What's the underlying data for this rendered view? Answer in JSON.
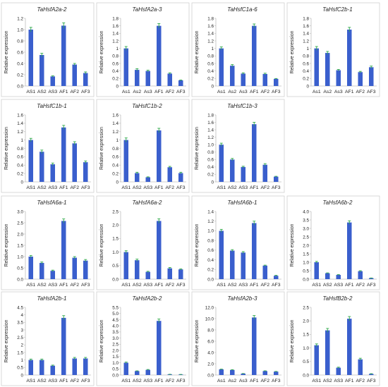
{
  "colors": {
    "bar": "#3a5fcd",
    "error": "#2ea84a",
    "axis": "#bfbfbf",
    "panel_border": "#d0d0d0"
  },
  "chart_data": [
    {
      "type": "bar",
      "title": "TaHsfA2a-2",
      "ylabel": "Relative expression",
      "categories": [
        "AS1",
        "AS2",
        "AS3",
        "AF1",
        "AF2",
        "AF3"
      ],
      "values": [
        1.0,
        0.55,
        0.17,
        1.07,
        0.38,
        0.23
      ],
      "errors": [
        0.04,
        0.03,
        0.01,
        0.05,
        0.02,
        0.02
      ],
      "ylim": [
        0,
        1.2
      ],
      "yticks": [
        "0.0",
        "0.2",
        "0.4",
        "0.6",
        "0.8",
        "1.0",
        "1.2"
      ]
    },
    {
      "type": "bar",
      "title": "TaHsfA2a-3",
      "ylabel": "Relative expression",
      "categories": [
        "As1",
        "As2",
        "As3",
        "AF1",
        "AF2",
        "AF3"
      ],
      "values": [
        1.0,
        0.43,
        0.4,
        1.6,
        0.33,
        0.15
      ],
      "errors": [
        0.05,
        0.03,
        0.02,
        0.06,
        0.02,
        0.01
      ],
      "ylim": [
        0,
        1.8
      ],
      "yticks": [
        "0",
        "0.2",
        "0.4",
        "0.6",
        "0.8",
        "1",
        "1.2",
        "1.4",
        "1.6",
        "1.8"
      ]
    },
    {
      "type": "bar",
      "title": "TaHsfC1a-6",
      "ylabel": "Relative expression",
      "categories": [
        "As1",
        "As2",
        "As3",
        "AF1",
        "AF2",
        "AF3"
      ],
      "values": [
        1.0,
        0.54,
        0.33,
        1.6,
        0.32,
        0.19
      ],
      "errors": [
        0.04,
        0.03,
        0.02,
        0.05,
        0.02,
        0.01
      ],
      "ylim": [
        0,
        1.8
      ],
      "yticks": [
        "0",
        "0.2",
        "0.4",
        "0.6",
        "0.8",
        "1",
        "1.2",
        "1.4",
        "1.6",
        "1.8"
      ]
    },
    {
      "type": "bar",
      "title": "TaHsfC2b-1",
      "ylabel": "Relative expression",
      "categories": [
        "As1",
        "As2",
        "As3",
        "AF1",
        "AF2",
        "AF3"
      ],
      "values": [
        1.0,
        0.88,
        0.42,
        1.5,
        0.37,
        0.5
      ],
      "errors": [
        0.05,
        0.04,
        0.02,
        0.06,
        0.02,
        0.03
      ],
      "ylim": [
        0,
        1.8
      ],
      "yticks": [
        "0",
        "0.2",
        "0.4",
        "0.6",
        "0.8",
        "1",
        "1.2",
        "1.4",
        "1.6",
        "1.8"
      ]
    },
    {
      "type": "bar",
      "title": "TaHsfC1b-1",
      "ylabel": "Relative expression",
      "categories": [
        "AS1",
        "AS2",
        "AS3",
        "AF1",
        "AF2",
        "AF3"
      ],
      "values": [
        1.0,
        0.72,
        0.42,
        1.3,
        0.92,
        0.47
      ],
      "errors": [
        0.04,
        0.04,
        0.03,
        0.05,
        0.04,
        0.03
      ],
      "ylim": [
        0,
        1.6
      ],
      "yticks": [
        "0",
        "0.2",
        "0.4",
        "0.6",
        "0.8",
        "1",
        "1.2",
        "1.4",
        "1.6"
      ]
    },
    {
      "type": "bar",
      "title": "TaHsfC1b-2",
      "ylabel": "Relative expression",
      "categories": [
        "AS1",
        "AS2",
        "AS3",
        "AF1",
        "AF2",
        "AF3"
      ],
      "values": [
        1.0,
        0.21,
        0.11,
        1.23,
        0.35,
        0.21
      ],
      "errors": [
        0.05,
        0.02,
        0.01,
        0.05,
        0.02,
        0.02
      ],
      "ylim": [
        0,
        1.6
      ],
      "yticks": [
        "0",
        "0.2",
        "0.4",
        "0.6",
        "0.8",
        "1",
        "1.2",
        "1.4",
        "1.6"
      ]
    },
    {
      "type": "bar",
      "title": "TaHsfC1b-3",
      "ylabel": "Relative expression",
      "categories": [
        "AS1",
        "AS2",
        "AS3",
        "AF1",
        "AF2",
        "AF3"
      ],
      "values": [
        1.0,
        0.6,
        0.4,
        1.55,
        0.46,
        0.14
      ],
      "errors": [
        0.04,
        0.03,
        0.02,
        0.05,
        0.03,
        0.01
      ],
      "ylim": [
        0,
        1.8
      ],
      "yticks": [
        "0",
        "0.2",
        "0.4",
        "0.6",
        "0.8",
        "1.0",
        "1.2",
        "1.4",
        "1.6",
        "1.8"
      ]
    },
    {
      "type": "bar",
      "title": "TaHsfA6a-1",
      "ylabel": "Relative expression",
      "categories": [
        "AS1",
        "AS2",
        "AS3",
        "AF1",
        "AF2",
        "AF3"
      ],
      "values": [
        1.0,
        0.72,
        0.37,
        2.58,
        0.95,
        0.82
      ],
      "errors": [
        0.05,
        0.04,
        0.03,
        0.09,
        0.05,
        0.05
      ],
      "ylim": [
        0,
        3.0
      ],
      "yticks": [
        "0.0",
        "0.5",
        "1.0",
        "1.5",
        "2.0",
        "2.5",
        "3.0"
      ]
    },
    {
      "type": "bar",
      "title": "TaHsfA6a-2",
      "ylabel": "Relative expression",
      "categories": [
        "AS1",
        "AS2",
        "AS3",
        "AF1",
        "AF2",
        "AF3"
      ],
      "values": [
        1.0,
        0.7,
        0.27,
        2.15,
        0.4,
        0.36
      ],
      "errors": [
        0.05,
        0.04,
        0.02,
        0.08,
        0.03,
        0.02
      ],
      "ylim": [
        0,
        2.5
      ],
      "yticks": [
        "0.0",
        "0.5",
        "1.0",
        "1.5",
        "2.0",
        "2.5"
      ]
    },
    {
      "type": "bar",
      "title": "TaHsfA6b-1",
      "ylabel": "Relative expression",
      "categories": [
        "AS1",
        "AS2",
        "AS3",
        "AF1",
        "AF2",
        "AF3"
      ],
      "values": [
        1.0,
        0.59,
        0.55,
        1.16,
        0.28,
        0.07
      ],
      "errors": [
        0.03,
        0.02,
        0.02,
        0.04,
        0.01,
        0.01
      ],
      "ylim": [
        0,
        1.4
      ],
      "yticks": [
        "0.0",
        "0.2",
        "0.4",
        "0.6",
        "0.8",
        "1.0",
        "1.2",
        "1.4"
      ]
    },
    {
      "type": "bar",
      "title": "TaHsfA6b-2",
      "ylabel": "Relative expression",
      "categories": [
        "AS1",
        "AS2",
        "AS3",
        "AF1",
        "AF2",
        "AF3"
      ],
      "values": [
        1.0,
        0.35,
        0.25,
        3.35,
        0.47,
        0.06
      ],
      "errors": [
        0.05,
        0.02,
        0.02,
        0.1,
        0.03,
        0.01
      ],
      "ylim": [
        0,
        4.0
      ],
      "yticks": [
        "0.0",
        "0.5",
        "1.0",
        "1.5",
        "2.0",
        "2.5",
        "3.0",
        "3.5",
        "4.0"
      ]
    },
    {
      "type": "bar",
      "title": "TaHsfA2b-1",
      "ylabel": "Relative expression",
      "categories": [
        "AS1",
        "AS2",
        "AS3",
        "AF1",
        "AF2",
        "AF3"
      ],
      "values": [
        1.0,
        1.0,
        0.62,
        3.8,
        1.1,
        1.1
      ],
      "errors": [
        0.06,
        0.06,
        0.04,
        0.15,
        0.07,
        0.07
      ],
      "ylim": [
        0,
        4.5
      ],
      "yticks": [
        "0",
        "0.5",
        "1",
        "1.5",
        "2",
        "2.5",
        "3",
        "3.5",
        "4",
        "4.5"
      ]
    },
    {
      "type": "bar",
      "title": "TaHsfA2b-2",
      "ylabel": "Relative expression",
      "categories": [
        "AS1",
        "AS2",
        "AS3",
        "AF1",
        "AF2",
        "AF3"
      ],
      "values": [
        1.0,
        0.32,
        0.42,
        4.4,
        0.05,
        0.04
      ],
      "errors": [
        0.05,
        0.02,
        0.03,
        0.15,
        0.01,
        0.01
      ],
      "ylim": [
        0,
        5.5
      ],
      "yticks": [
        "0.0",
        "0.5",
        "1.0",
        "1.5",
        "2.0",
        "2.5",
        "3.0",
        "3.5",
        "4.0",
        "4.5",
        "5.0",
        "5.5"
      ]
    },
    {
      "type": "bar",
      "title": "TaHsfA2b-3",
      "ylabel": "Relative expression",
      "categories": [
        "As1",
        "As2",
        "As3",
        "AF1",
        "AF2",
        "AF3"
      ],
      "values": [
        1.0,
        0.9,
        0.25,
        10.2,
        0.7,
        0.6
      ],
      "errors": [
        0.05,
        0.05,
        0.02,
        0.35,
        0.05,
        0.04
      ],
      "ylim": [
        0,
        12.0
      ],
      "yticks": [
        "0.0",
        "2.0",
        "4.0",
        "6.0",
        "8.0",
        "10.0",
        "12.0"
      ]
    },
    {
      "type": "bar",
      "title": "TaHsfB2b-2",
      "ylabel": "Relative expression",
      "categories": [
        "AS1",
        "AS2",
        "AS3",
        "AF1",
        "AF2",
        "AF3"
      ],
      "values": [
        1.1,
        1.65,
        0.27,
        2.08,
        0.58,
        0.04
      ],
      "errors": [
        0.05,
        0.07,
        0.02,
        0.08,
        0.04,
        0.01
      ],
      "ylim": [
        0,
        2.5
      ],
      "yticks": [
        "0.0",
        "0.5",
        "1.0",
        "1.5",
        "2.0",
        "2.5"
      ]
    }
  ]
}
